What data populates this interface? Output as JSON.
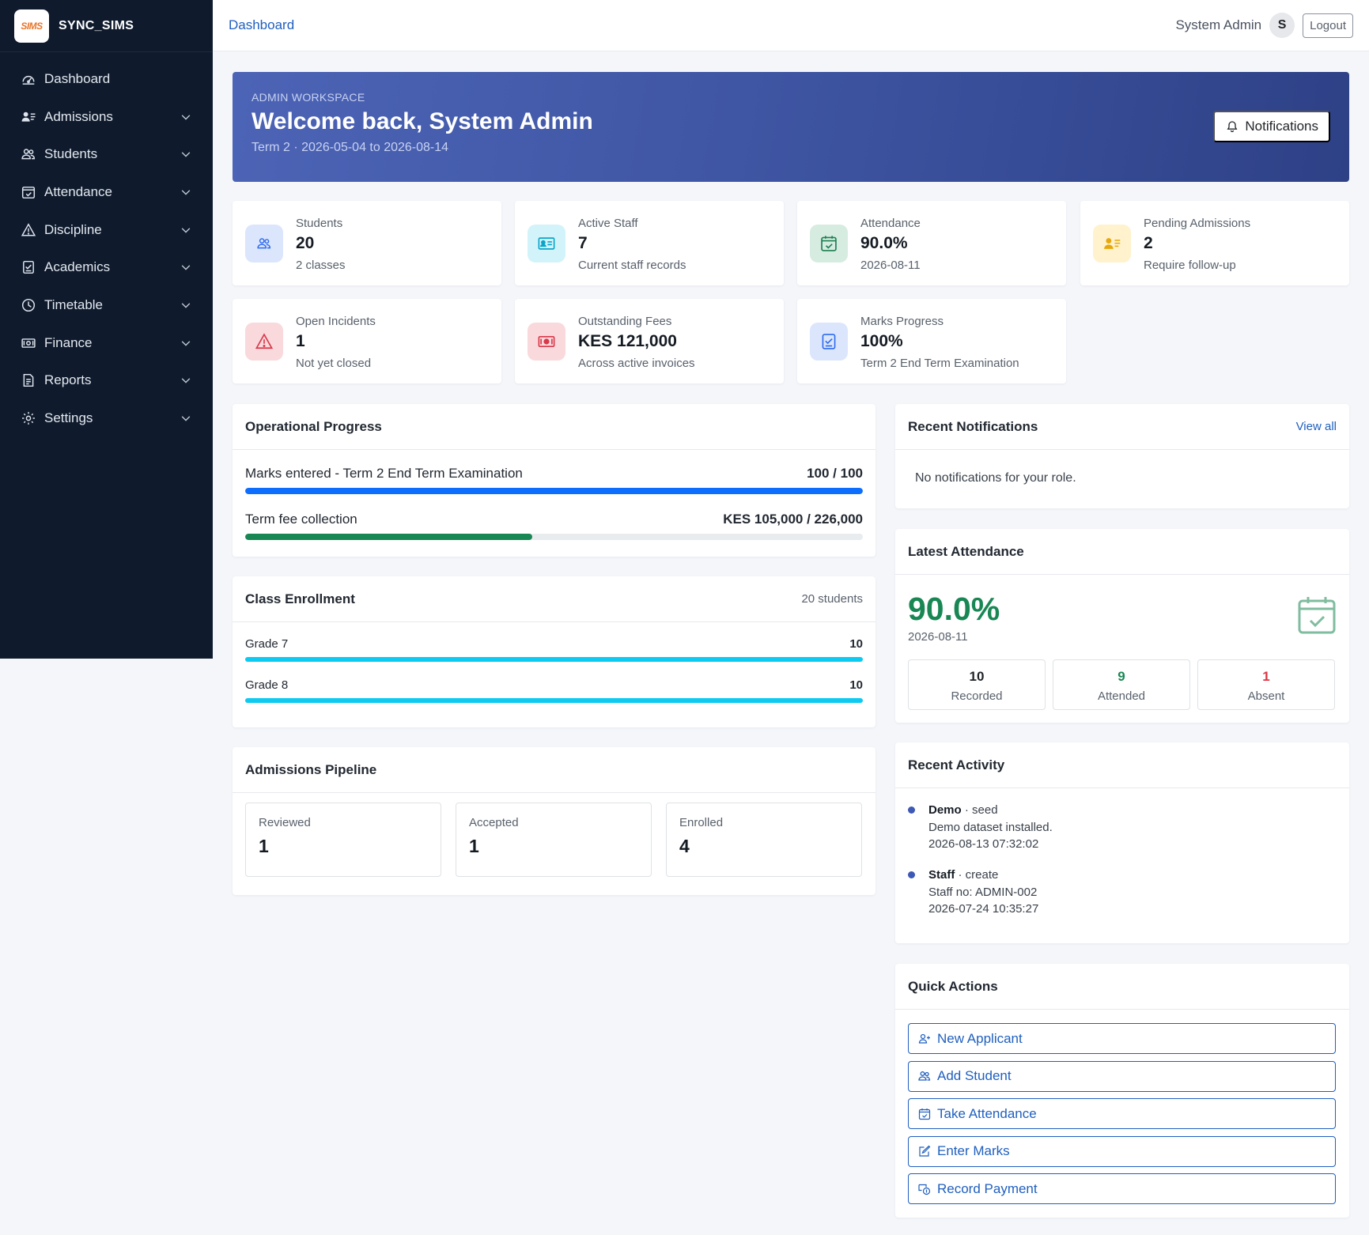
{
  "brand": {
    "name": "SYNC_SIMS",
    "logo_text": "SIMS"
  },
  "sidebar": {
    "items": [
      {
        "label": "Dashboard",
        "icon": "dashboard-icon"
      },
      {
        "label": "Admissions",
        "icon": "admissions-icon"
      },
      {
        "label": "Students",
        "icon": "students-icon"
      },
      {
        "label": "Attendance",
        "icon": "attendance-icon"
      },
      {
        "label": "Discipline",
        "icon": "discipline-icon"
      },
      {
        "label": "Academics",
        "icon": "academics-icon"
      },
      {
        "label": "Timetable",
        "icon": "timetable-icon"
      },
      {
        "label": "Finance",
        "icon": "finance-icon"
      },
      {
        "label": "Reports",
        "icon": "reports-icon"
      },
      {
        "label": "Settings",
        "icon": "settings-icon"
      }
    ]
  },
  "topbar": {
    "breadcrumb": "Dashboard",
    "user_name": "System Admin",
    "avatar_initial": "S",
    "logout_label": "Logout"
  },
  "hero": {
    "kicker": "ADMIN WORKSPACE",
    "title": "Welcome back, System Admin",
    "term": "Term 2 · 2026-05-04 to 2026-08-14",
    "notifications_label": "Notifications"
  },
  "stats": [
    {
      "label": "Students",
      "value": "20",
      "sub": "2 classes",
      "icon": "students-icon",
      "tile_color": "#dbe6fd",
      "icon_color": "#2f6bed"
    },
    {
      "label": "Active Staff",
      "value": "7",
      "sub": "Current staff records",
      "icon": "id-card-icon",
      "tile_color": "#d3f3fb",
      "icon_color": "#0aa5c8"
    },
    {
      "label": "Attendance",
      "value": "90.0%",
      "sub": "2026-08-11",
      "icon": "calendar-check-icon",
      "tile_color": "#d7ece1",
      "icon_color": "#1c7f50"
    },
    {
      "label": "Pending Admissions",
      "value": "2",
      "sub": "Require follow-up",
      "icon": "person-lines-icon",
      "tile_color": "#fff2cc",
      "icon_color": "#e7a80d"
    },
    {
      "label": "Open Incidents",
      "value": "1",
      "sub": "Not yet closed",
      "icon": "warning-icon",
      "tile_color": "#f9d9dc",
      "icon_color": "#d8394a"
    },
    {
      "label": "Outstanding Fees",
      "value": "KES 121,000",
      "sub": "Across active invoices",
      "icon": "cash-icon",
      "tile_color": "#f9d9dc",
      "icon_color": "#d8394a"
    },
    {
      "label": "Marks Progress",
      "value": "100%",
      "sub": "Term 2 End Term Examination",
      "icon": "checklist-icon",
      "tile_color": "#dbe6fd",
      "icon_color": "#2f6bed"
    }
  ],
  "operational": {
    "title": "Operational Progress",
    "rows": [
      {
        "label": "Marks entered - Term 2 End Term Examination",
        "value": "100 / 100",
        "fraction": 1.0,
        "color": "#0d6efd"
      },
      {
        "label": "Term fee collection",
        "value": "KES 105,000 / 226,000",
        "fraction": 0.4646,
        "color": "#198754"
      }
    ]
  },
  "enrollment": {
    "title": "Class Enrollment",
    "total": "20 students",
    "rows": [
      {
        "label": "Grade 7",
        "value": "10",
        "fraction": 1.0
      },
      {
        "label": "Grade 8",
        "value": "10",
        "fraction": 1.0
      }
    ],
    "bar_color": "#0dcaf0"
  },
  "pipeline": {
    "title": "Admissions Pipeline",
    "stages": [
      {
        "label": "Reviewed",
        "value": "1"
      },
      {
        "label": "Accepted",
        "value": "1"
      },
      {
        "label": "Enrolled",
        "value": "4"
      }
    ]
  },
  "notifications": {
    "title": "Recent Notifications",
    "view_all": "View all",
    "empty": "No notifications for your role."
  },
  "latest_attendance": {
    "title": "Latest Attendance",
    "rate": "90.0%",
    "date": "2026-08-11",
    "boxes": [
      {
        "value": "10",
        "label": "Recorded",
        "color": "#212529"
      },
      {
        "value": "9",
        "label": "Attended",
        "color": "#198754"
      },
      {
        "value": "1",
        "label": "Absent",
        "color": "#dc3545"
      }
    ]
  },
  "activity": {
    "title": "Recent Activity",
    "items": [
      {
        "module": "Demo",
        "action": " · seed",
        "detail": "Demo dataset installed.",
        "time": "2026-08-13 07:32:02"
      },
      {
        "module": "Staff",
        "action": " · create",
        "detail": "Staff no: ADMIN-002",
        "time": "2026-07-24 10:35:27"
      }
    ]
  },
  "quick_actions": {
    "title": "Quick Actions",
    "items": [
      {
        "label": "New Applicant",
        "icon": "person-plus-icon"
      },
      {
        "label": "Add Student",
        "icon": "students-icon"
      },
      {
        "label": "Take Attendance",
        "icon": "calendar-check-icon"
      },
      {
        "label": "Enter Marks",
        "icon": "pencil-square-icon"
      },
      {
        "label": "Record Payment",
        "icon": "cash-coin-icon"
      }
    ]
  },
  "colors": {
    "sidebar_bg": "#0f1b2d",
    "accent": "#1f5fbf",
    "hero_from": "#4d64b6",
    "hero_to": "#2e4187",
    "success": "#198754",
    "danger": "#dc3545"
  }
}
